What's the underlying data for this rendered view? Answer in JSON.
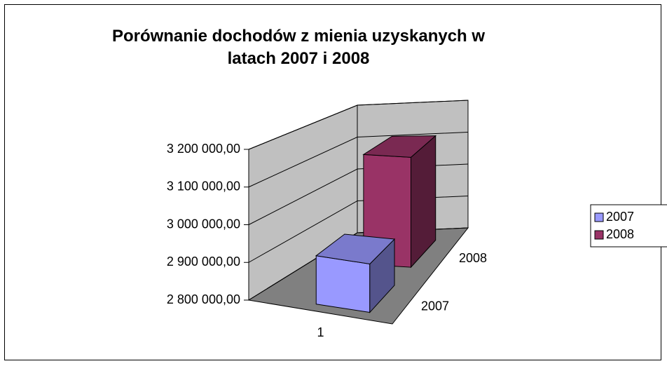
{
  "chart_data": {
    "type": "bar3d",
    "title": "Porównanie dochodów z mienia uzyskanych w latach 2007 i 2008",
    "categories": [
      "1"
    ],
    "series": [
      {
        "name": "2007",
        "color": "#9999ff",
        "values": [
          2930000
        ]
      },
      {
        "name": "2008",
        "color": "#993366",
        "values": [
          3120000
        ]
      }
    ],
    "ylim": [
      2800000,
      3200000
    ],
    "yticks": [
      {
        "value": 2800000,
        "label": "2 800 000,00"
      },
      {
        "value": 2900000,
        "label": "2 900 000,00"
      },
      {
        "value": 3000000,
        "label": "3 000 000,00"
      },
      {
        "value": 3100000,
        "label": "3 100 000,00"
      },
      {
        "value": 3200000,
        "label": "3 200 000,00"
      }
    ],
    "grid": true,
    "legend": "right"
  }
}
